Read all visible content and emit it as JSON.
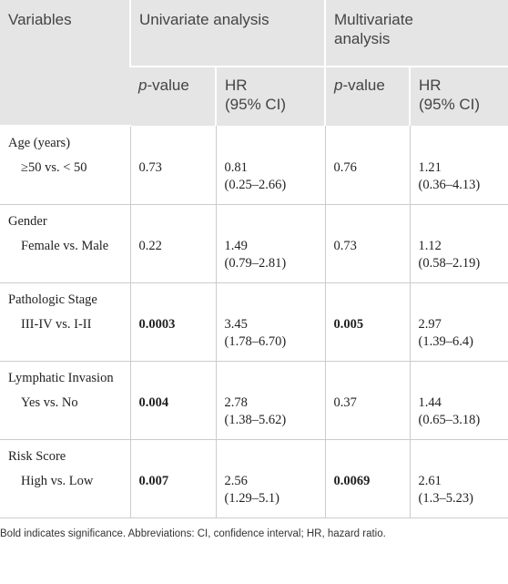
{
  "header": {
    "variables": "Variables",
    "univariate": "Univariate analysis",
    "multivariate": "Multivariate analysis",
    "p_value": {
      "italic": "p",
      "rest": "-value"
    },
    "hr": "HR",
    "ci": "(95% CI)"
  },
  "table": {
    "rows": [
      {
        "variable": "Age (years)",
        "comparison": "≥50 vs. < 50",
        "univariate": {
          "p": "0.73",
          "p_bold": false,
          "hr": "0.81",
          "ci": "(0.25–2.66)"
        },
        "multivariate": {
          "p": "0.76",
          "p_bold": false,
          "hr": "1.21",
          "ci": "(0.36–4.13)"
        }
      },
      {
        "variable": "Gender",
        "comparison": "Female vs. Male",
        "univariate": {
          "p": "0.22",
          "p_bold": false,
          "hr": "1.49",
          "ci": "(0.79–2.81)"
        },
        "multivariate": {
          "p": "0.73",
          "p_bold": false,
          "hr": "1.12",
          "ci": "(0.58–2.19)"
        }
      },
      {
        "variable": "Pathologic Stage",
        "comparison": "III-IV vs. I-II",
        "univariate": {
          "p": "0.0003",
          "p_bold": true,
          "hr": "3.45",
          "ci": "(1.78–6.70)"
        },
        "multivariate": {
          "p": "0.005",
          "p_bold": true,
          "hr": "2.97",
          "ci": "(1.39–6.4)"
        }
      },
      {
        "variable": "Lymphatic Invasion",
        "comparison": "Yes vs. No",
        "univariate": {
          "p": "0.004",
          "p_bold": true,
          "hr": "2.78",
          "ci": "(1.38–5.62)"
        },
        "multivariate": {
          "p": "0.37",
          "p_bold": false,
          "hr": "1.44",
          "ci": "(0.65–3.18)"
        }
      },
      {
        "variable": "Risk Score",
        "comparison": "High vs. Low",
        "univariate": {
          "p": "0.007",
          "p_bold": true,
          "hr": "2.56",
          "ci": "(1.29–5.1)"
        },
        "multivariate": {
          "p": "0.0069",
          "p_bold": true,
          "hr": "2.61",
          "ci": "(1.3–5.23)"
        }
      }
    ]
  },
  "footnote": "Bold indicates significance. Abbreviations: CI, confidence interval; HR, hazard ratio."
}
